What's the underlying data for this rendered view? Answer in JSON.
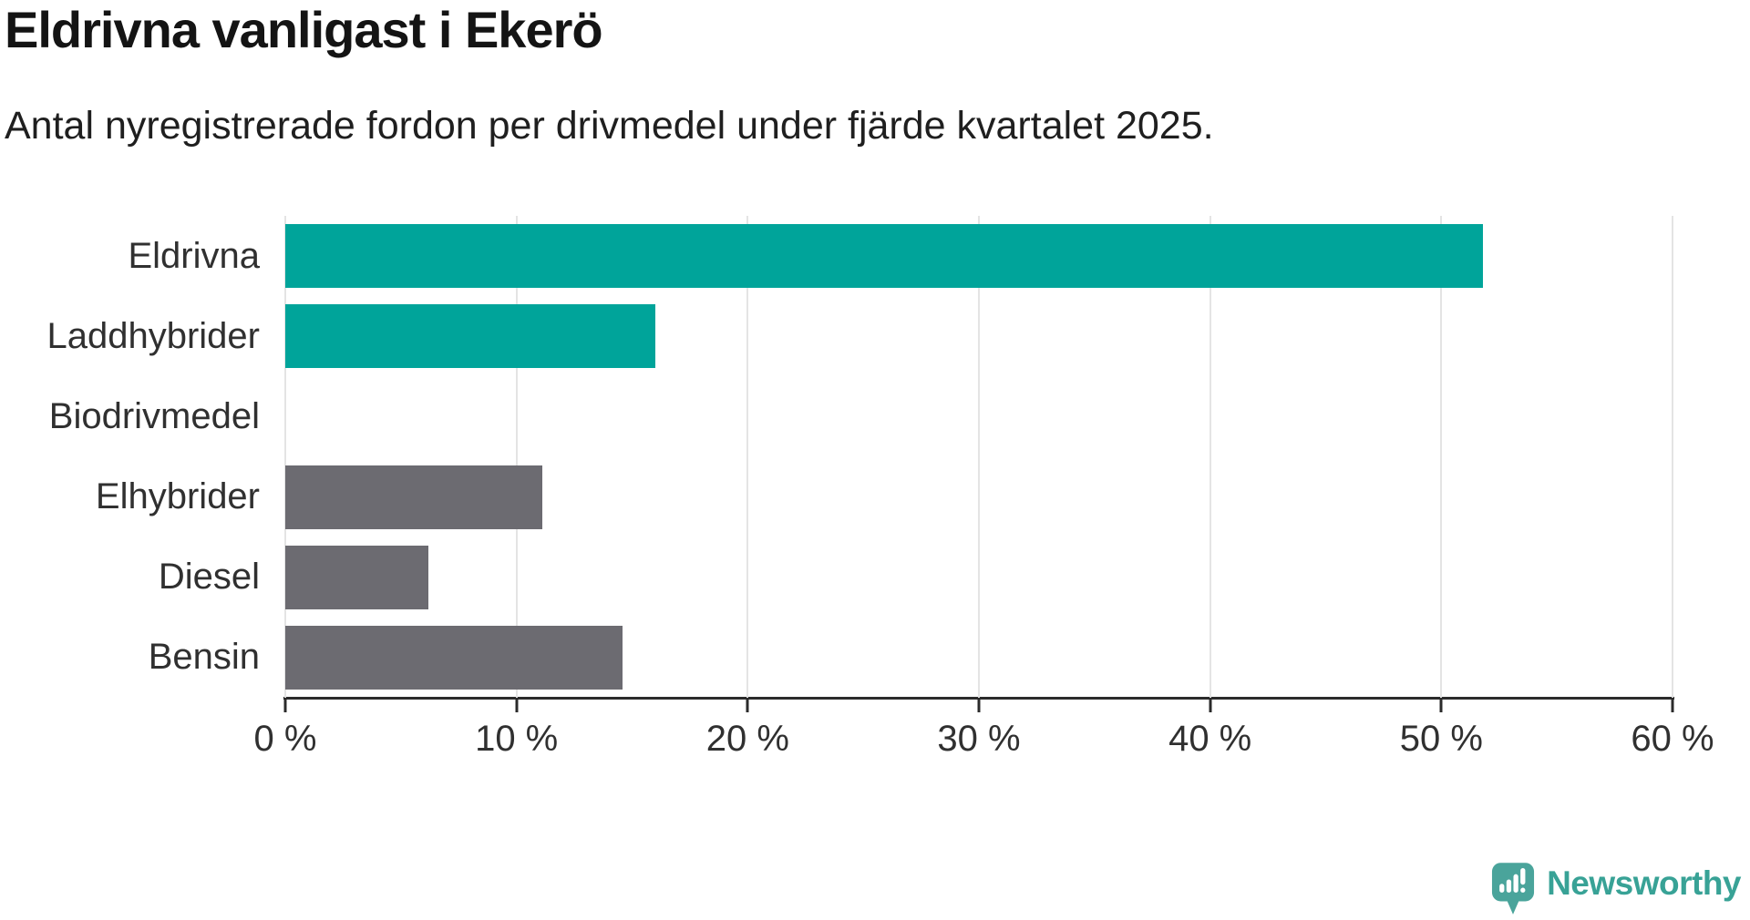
{
  "chart_data": {
    "type": "bar",
    "orientation": "horizontal",
    "title": "Eldrivna vanligast i Ekerö",
    "subtitle": "Antal nyregistrerade fordon per drivmedel under fjärde kvartalet 2025.",
    "categories": [
      "Eldrivna",
      "Laddhybrider",
      "Biodrivmedel",
      "Elhybrider",
      "Diesel",
      "Bensin"
    ],
    "values": [
      51.8,
      16,
      0,
      11.1,
      6.2,
      14.6
    ],
    "value_unit": "percent",
    "bar_colors": [
      "#00a49a",
      "#00a49a",
      "#6c6b71",
      "#6c6b71",
      "#6c6b71",
      "#6c6b71"
    ],
    "xlim": [
      0,
      60
    ],
    "x_ticks": [
      0,
      10,
      20,
      30,
      40,
      50,
      60
    ],
    "x_tick_labels": [
      "0 %",
      "10 %",
      "20 %",
      "30 %",
      "40 %",
      "50 %",
      "60 %"
    ],
    "grid": "vertical",
    "legend": "none"
  },
  "footer": {
    "logo_text": "Newsworthy",
    "logo_icon": "speech-bubble-with-bar-chart-and-exclamation",
    "logo_text_color": "#38a296",
    "logo_icon_color": "#4aa49b"
  },
  "colors": {
    "background": "#ffffff",
    "title_text": "#141414",
    "subtitle_text": "#1f1f1f",
    "axis_label_text": "#303030",
    "axis_line": "#2b2b2b",
    "gridline": "#e4e4e4",
    "bar_teal": "#00a49a",
    "bar_gray": "#6c6b71"
  }
}
